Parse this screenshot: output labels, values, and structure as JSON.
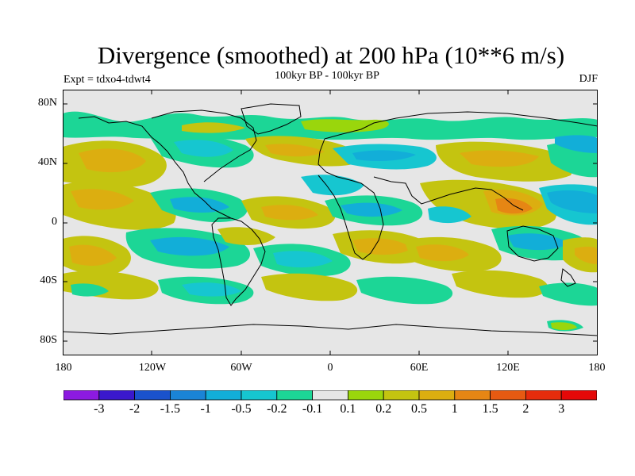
{
  "title": "Divergence (smoothed) at 200 hPa (10**6 m/s)",
  "subtitle": "100kyr BP - 100kyr BP",
  "experiment": "Expt = tdxo4-tdwt4",
  "season": "DJF",
  "lat_labels": [
    "80N",
    "40N",
    "0",
    "40S",
    "80S"
  ],
  "lon_labels": [
    "180",
    "120W",
    "60W",
    "0",
    "60E",
    "120E",
    "180"
  ],
  "colorbar": {
    "labels": [
      "-3",
      "-2",
      "-1.5",
      "-1",
      "-0.5",
      "-0.2",
      "-0.1",
      "0.1",
      "0.2",
      "0.5",
      "1",
      "1.5",
      "2",
      "3"
    ],
    "colors": [
      "#8c1ae0",
      "#3a18cc",
      "#1a52cc",
      "#1a84d6",
      "#12aed8",
      "#16c6d0",
      "#1cd696",
      "#e6e6e6",
      "#9ad60c",
      "#c4c410",
      "#dcae10",
      "#e68614",
      "#e65a12",
      "#e62c0c",
      "#e40808"
    ]
  },
  "map_colors": {
    "ocean_neutral": "#e6e6e6",
    "coast": "#000000"
  }
}
